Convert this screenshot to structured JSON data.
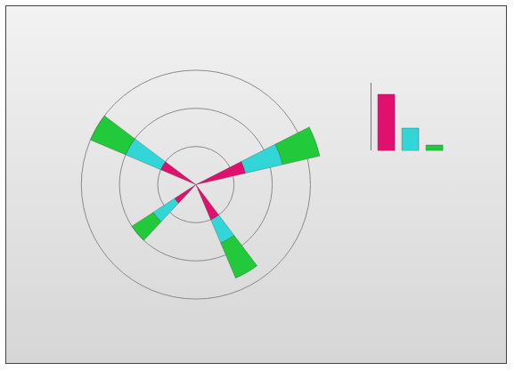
{
  "chart_data": [
    {
      "type": "barpolar",
      "x": [
        20,
        150,
        220,
        300
      ],
      "series": [
        {
          "name": null,
          "color": "#e0106e",
          "values": [
            4,
            3,
            2,
            3
          ]
        },
        {
          "name": null,
          "color": "#33d6d6",
          "values": [
            3,
            3,
            2,
            2
          ]
        },
        {
          "name": null,
          "color": "#22c93a",
          "values": [
            3,
            3,
            2,
            3
          ]
        }
      ],
      "stacked": true,
      "ylim": [
        0,
        12
      ],
      "yticks": [
        3,
        6,
        9,
        12
      ],
      "grid": true,
      "tick_labels": false
    },
    {
      "type": "bar",
      "categories": [
        null,
        null,
        null
      ],
      "values": [
        10,
        4,
        1
      ],
      "colors": [
        "#e0106e",
        "#33d6d6",
        "#22c93a"
      ],
      "ylim": [
        0,
        12
      ],
      "yticks": [
        0,
        4,
        8,
        12
      ],
      "grid": false,
      "tick_labels": false
    }
  ]
}
